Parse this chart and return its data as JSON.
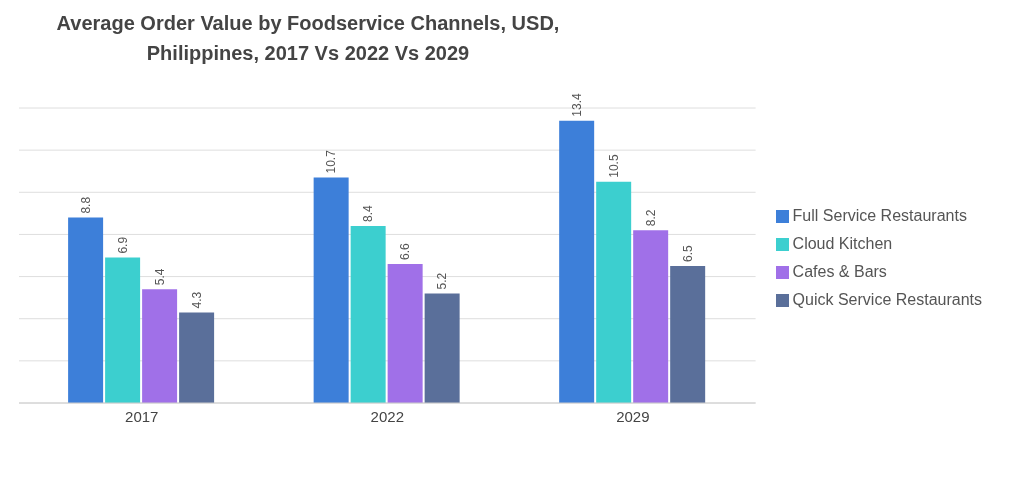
{
  "chart_data": {
    "type": "bar",
    "title": "Average Order Value by Foodservice Channels, USD, Philippines, 2017 Vs 2022 Vs 2029",
    "categories": [
      "2017",
      "2022",
      "2029"
    ],
    "series": [
      {
        "name": "Full Service Restaurants",
        "color": "#3d7fd9",
        "values": [
          8.8,
          10.7,
          13.4
        ]
      },
      {
        "name": "Cloud Kitchen",
        "color": "#3ccfcf",
        "values": [
          6.9,
          8.4,
          10.5
        ]
      },
      {
        "name": "Cafes & Bars",
        "color": "#a070e8",
        "values": [
          5.4,
          6.6,
          8.2
        ]
      },
      {
        "name": "Quick Service Restaurants",
        "color": "#5a6f9a",
        "values": [
          4.3,
          5.2,
          6.5
        ]
      }
    ],
    "tick_labels": "x",
    "grid": "y",
    "legend": "right",
    "data_labels": true
  }
}
